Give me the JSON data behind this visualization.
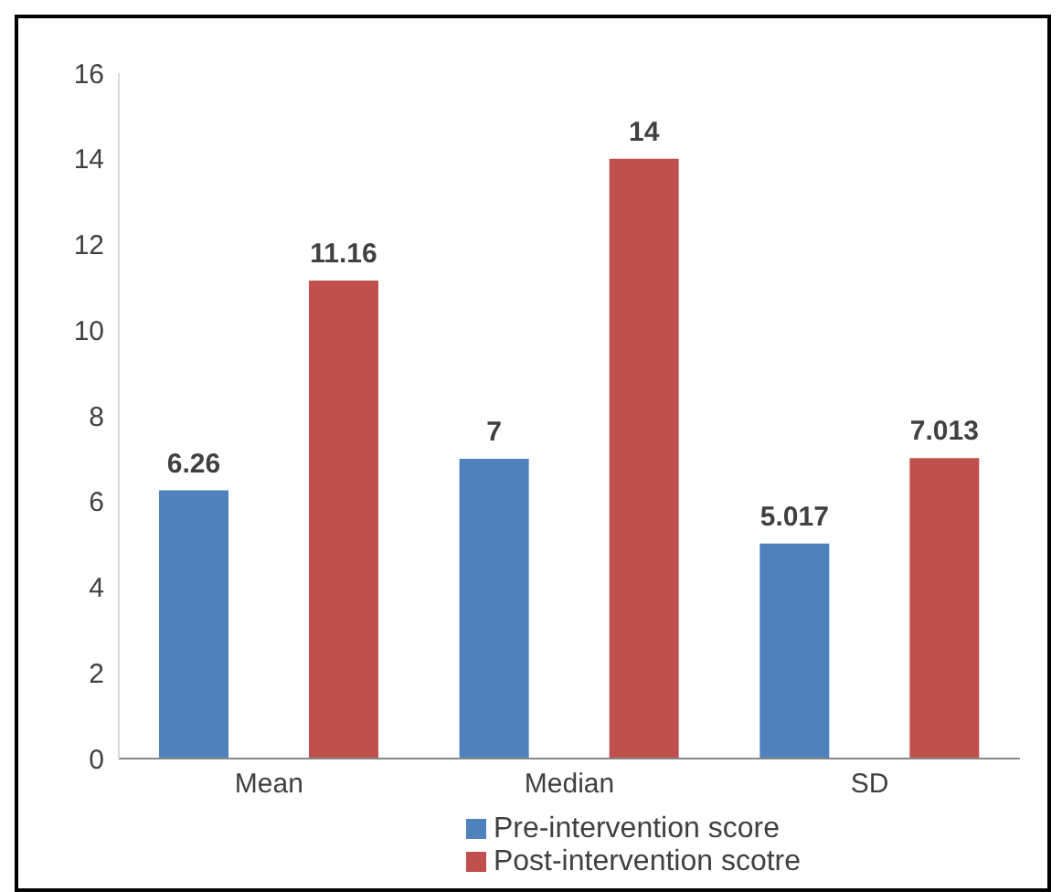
{
  "chart_data": {
    "type": "bar",
    "categories": [
      "Mean",
      "Median",
      "SD"
    ],
    "series": [
      {
        "name": "Pre-intervention score",
        "color": "#4f81bd",
        "values": [
          6.26,
          7,
          5.017
        ]
      },
      {
        "name": "Post-intervention scotre",
        "color": "#c0504d",
        "values": [
          11.16,
          14,
          7.013
        ]
      }
    ],
    "ylim": [
      0,
      16
    ],
    "yticks": [
      0,
      2,
      4,
      6,
      8,
      10,
      12,
      14,
      16
    ],
    "grid": false,
    "legend": "bottom",
    "data_labels": true
  }
}
